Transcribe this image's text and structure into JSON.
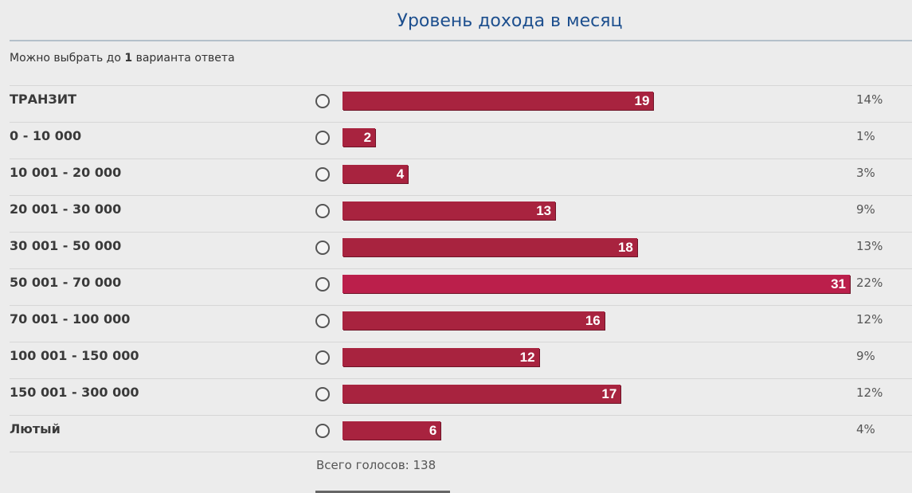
{
  "header": {
    "title": "Уровень дохода в месяц"
  },
  "instruction": {
    "before": "Можно выбрать до",
    "count": 1,
    "after": "варианта ответа"
  },
  "options": [
    {
      "label": "ТРАНЗИТ",
      "votes": 19,
      "percent": "14%"
    },
    {
      "label": "0 - 10 000",
      "votes": 2,
      "percent": "1%"
    },
    {
      "label": "10 001 - 20 000",
      "votes": 4,
      "percent": "3%"
    },
    {
      "label": "20 001 - 30 000",
      "votes": 13,
      "percent": "9%"
    },
    {
      "label": "30 001 - 50 000",
      "votes": 18,
      "percent": "13%"
    },
    {
      "label": "50 001 - 70 000",
      "votes": 31,
      "percent": "22%"
    },
    {
      "label": "70 001 - 100 000",
      "votes": 16,
      "percent": "12%"
    },
    {
      "label": "100 001 - 150 000",
      "votes": 12,
      "percent": "9%"
    },
    {
      "label": "150 001 - 300 000",
      "votes": 17,
      "percent": "12%"
    },
    {
      "label": "Лютый",
      "votes": 6,
      "percent": "4%"
    }
  ],
  "total": {
    "label": "Всего голосов:",
    "value": 138
  }
}
